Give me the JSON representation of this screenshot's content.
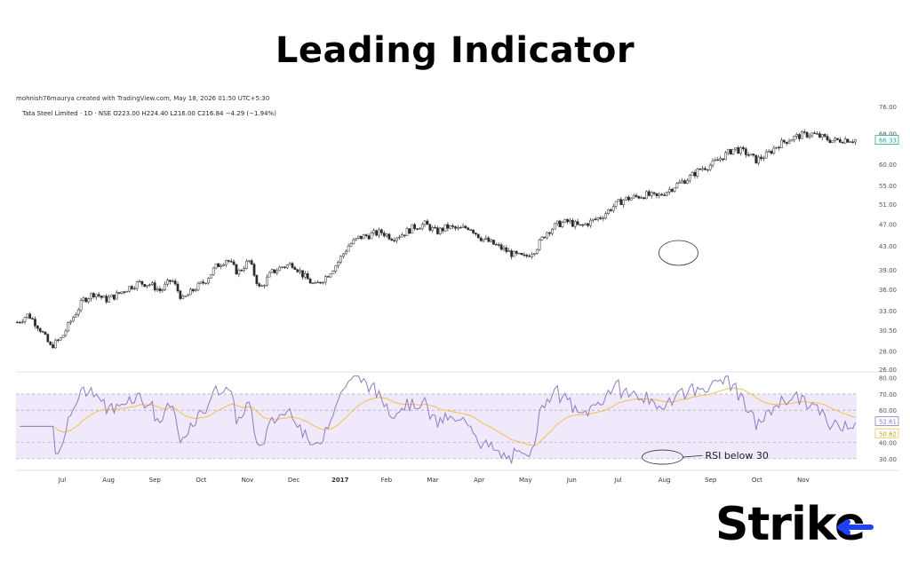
{
  "title": "Leading Indicator",
  "credit": "mohnish76maurya created with TradingView.com, May 18, 2026 01:50 UTC+5:30",
  "symbol_line": "Tata Steel Limited · 1D · NSE  O223.00  H224.40  L216.00  C216.84  −4.29 (−1.94%)",
  "logo": "Strike",
  "colors": {
    "up": "#1f1f1f",
    "down": "#1f1f1f",
    "rsi": "#8e7cc3",
    "rsi_ma": "#f2c14e",
    "band": "#efe9fb",
    "last_price": "#26a69a"
  },
  "chart_data": [
    {
      "type": "candlestick",
      "price_axis_ticks": [
        "76.00",
        "68.00",
        "60.00",
        "55.00",
        "51.00",
        "47.00",
        "43.00",
        "39.00",
        "36.00",
        "33.00",
        "30.50",
        "28.00",
        "26.00"
      ],
      "price_scale": "log",
      "ylim": [
        26,
        76
      ],
      "last_price_label": "66.33",
      "last_price": 66.33,
      "x_labels": [
        "Jul",
        "Aug",
        "Sep",
        "Oct",
        "Nov",
        "Dec",
        "2017",
        "Feb",
        "Mar",
        "Apr",
        "May",
        "Jun",
        "Jul",
        "Aug",
        "Sep",
        "Oct",
        "Nov"
      ],
      "price_path": [
        [
          "Jun-16",
          31.5
        ],
        [
          "Jun-24",
          32.5
        ],
        [
          "Jul-01",
          30.8
        ],
        [
          "Jul-06",
          28.5
        ],
        [
          "Jul-14",
          29.5
        ],
        [
          "Jul-22",
          32
        ],
        [
          "Jul-29",
          34.5
        ],
        [
          "Aug-05",
          35.5
        ],
        [
          "Aug-12",
          34.5
        ],
        [
          "Aug-20",
          35.2
        ],
        [
          "Aug-27",
          36.2
        ],
        [
          "Sep-03",
          37
        ],
        [
          "Sep-10",
          36.8
        ],
        [
          "Sep-17",
          35.8
        ],
        [
          "Sep-24",
          37.5
        ],
        [
          "Oct-01",
          34.5
        ],
        [
          "Oct-08",
          36
        ],
        [
          "Oct-15",
          37.2
        ],
        [
          "Oct-22",
          39.5
        ],
        [
          "Oct-29",
          40.8
        ],
        [
          "Nov-05",
          38.5
        ],
        [
          "Nov-12",
          40.5
        ],
        [
          "Nov-19",
          36
        ],
        [
          "Nov-26",
          38.5
        ],
        [
          "Dec-03",
          39.5
        ],
        [
          "Dec-10",
          40
        ],
        [
          "Dec-17",
          38
        ],
        [
          "Dec-24",
          36.5
        ],
        [
          "Jan-01",
          38
        ],
        [
          "Jan-08",
          40
        ],
        [
          "Jan-15",
          43
        ],
        [
          "Jan-22",
          44.5
        ],
        [
          "Jan-29",
          45
        ],
        [
          "Feb-05",
          45.5
        ],
        [
          "Feb-12",
          44.5
        ],
        [
          "Feb-19",
          45.2
        ],
        [
          "Feb-26",
          46.5
        ],
        [
          "Mar-05",
          47
        ],
        [
          "Mar-12",
          45.5
        ],
        [
          "Mar-19",
          46.5
        ],
        [
          "Mar-26",
          46
        ],
        [
          "Apr-03",
          46.5
        ],
        [
          "Apr-10",
          44.5
        ],
        [
          "Apr-17",
          43.5
        ],
        [
          "Apr-24",
          42.5
        ],
        [
          "May-01",
          41.5
        ],
        [
          "May-08",
          41
        ],
        [
          "May-15",
          42.5
        ],
        [
          "May-22",
          45.5
        ],
        [
          "May-29",
          47
        ],
        [
          "Jun-05",
          47.5
        ],
        [
          "Jun-12",
          46.5
        ],
        [
          "Jun-19",
          47.5
        ],
        [
          "Jun-26",
          48.5
        ],
        [
          "Jul-03",
          50.5
        ],
        [
          "Jul-10",
          52
        ],
        [
          "Jul-17",
          52.5
        ],
        [
          "Jul-24",
          53
        ],
        [
          "Jul-31",
          52.5
        ],
        [
          "Aug-07",
          54
        ],
        [
          "Aug-14",
          55.5
        ],
        [
          "Aug-21",
          57
        ],
        [
          "Aug-28",
          59
        ],
        [
          "Sep-04",
          60
        ],
        [
          "Sep-11",
          62
        ],
        [
          "Sep-18",
          64
        ],
        [
          "Sep-25",
          63
        ],
        [
          "Oct-02",
          61
        ],
        [
          "Oct-09",
          62.5
        ],
        [
          "Oct-16",
          65
        ],
        [
          "Oct-23",
          66.5
        ],
        [
          "Oct-30",
          67.5
        ],
        [
          "Nov-06",
          68
        ],
        [
          "Nov-13",
          67
        ],
        [
          "Nov-20",
          66
        ],
        [
          "Nov-27",
          66.5
        ],
        [
          "Dec-04",
          66.33
        ]
      ],
      "annotation": "RSI below 30"
    },
    {
      "type": "line",
      "name": "",
      "indicator_axis_ticks": [
        "80.00",
        "70.00",
        "60.00",
        "40.00",
        "30.00"
      ],
      "ylim": [
        25,
        82
      ],
      "rsi_last": 52.61,
      "rsi_ma_last": 50.62,
      "rsi_last_label": "52.61",
      "rsi_ma_last_label": "50.62",
      "bands": [
        30,
        40,
        60,
        70
      ],
      "annotation": "RSI below 30"
    }
  ]
}
